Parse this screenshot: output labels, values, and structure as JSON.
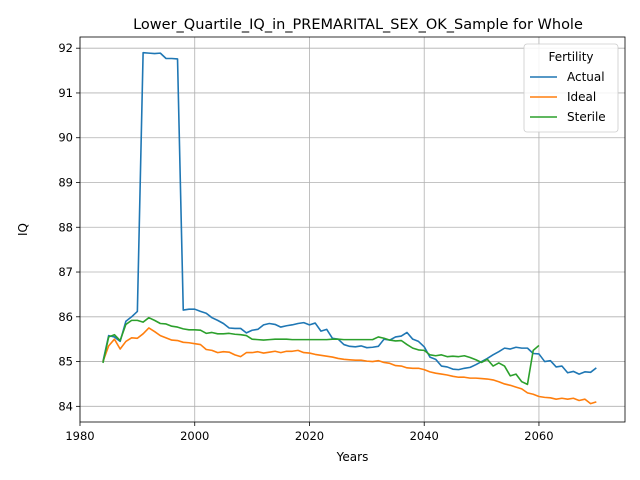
{
  "chart_data": {
    "type": "line",
    "title": "Lower_Quartile_IQ_in_PREMARITAL_SEX_OK_Sample for Whole",
    "xlabel": "Years",
    "ylabel": "IQ",
    "xlim": [
      1980,
      2075
    ],
    "ylim": [
      83.65,
      92.25
    ],
    "x_ticks": [
      1980,
      2000,
      2020,
      2040,
      2060
    ],
    "y_ticks": [
      84,
      85,
      86,
      87,
      88,
      89,
      90,
      91,
      92
    ],
    "grid": true,
    "legend": {
      "title": "Fertility",
      "placement": "top-right"
    },
    "series": [
      {
        "name": "Actual",
        "color": "#1f77b4",
        "points": [
          [
            1984,
            85.0
          ],
          [
            1985,
            85.58
          ],
          [
            1986,
            85.55
          ],
          [
            1987,
            85.45
          ],
          [
            1988,
            85.9
          ],
          [
            1989,
            86.0
          ],
          [
            1990,
            86.12
          ],
          [
            1991,
            91.9
          ],
          [
            1992,
            91.89
          ],
          [
            1993,
            91.88
          ],
          [
            1994,
            91.89
          ],
          [
            1995,
            91.77
          ],
          [
            1996,
            91.77
          ],
          [
            1997,
            91.76
          ],
          [
            1998,
            86.15
          ],
          [
            1999,
            86.17
          ],
          [
            2000,
            86.17
          ],
          [
            2001,
            86.12
          ],
          [
            2002,
            86.08
          ],
          [
            2003,
            85.98
          ],
          [
            2004,
            85.92
          ],
          [
            2005,
            85.85
          ],
          [
            2006,
            85.75
          ],
          [
            2007,
            85.74
          ],
          [
            2008,
            85.74
          ],
          [
            2009,
            85.64
          ],
          [
            2010,
            85.7
          ],
          [
            2011,
            85.72
          ],
          [
            2012,
            85.82
          ],
          [
            2013,
            85.85
          ],
          [
            2014,
            85.83
          ],
          [
            2015,
            85.77
          ],
          [
            2016,
            85.8
          ],
          [
            2017,
            85.82
          ],
          [
            2018,
            85.85
          ],
          [
            2019,
            85.87
          ],
          [
            2020,
            85.82
          ],
          [
            2021,
            85.86
          ],
          [
            2022,
            85.68
          ],
          [
            2023,
            85.72
          ],
          [
            2024,
            85.52
          ],
          [
            2025,
            85.5
          ],
          [
            2026,
            85.38
          ],
          [
            2027,
            85.34
          ],
          [
            2028,
            85.33
          ],
          [
            2029,
            85.35
          ],
          [
            2030,
            85.31
          ],
          [
            2031,
            85.32
          ],
          [
            2032,
            85.34
          ],
          [
            2033,
            85.5
          ],
          [
            2034,
            85.48
          ],
          [
            2035,
            85.55
          ],
          [
            2036,
            85.57
          ],
          [
            2037,
            85.65
          ],
          [
            2038,
            85.5
          ],
          [
            2039,
            85.45
          ],
          [
            2040,
            85.33
          ],
          [
            2041,
            85.1
          ],
          [
            2042,
            85.05
          ],
          [
            2043,
            84.9
          ],
          [
            2044,
            84.88
          ],
          [
            2045,
            84.83
          ],
          [
            2046,
            84.82
          ],
          [
            2047,
            84.85
          ],
          [
            2048,
            84.87
          ],
          [
            2049,
            84.93
          ],
          [
            2050,
            85.0
          ],
          [
            2051,
            85.07
          ],
          [
            2052,
            85.15
          ],
          [
            2053,
            85.22
          ],
          [
            2054,
            85.3
          ],
          [
            2055,
            85.28
          ],
          [
            2056,
            85.32
          ],
          [
            2057,
            85.3
          ],
          [
            2058,
            85.3
          ],
          [
            2059,
            85.18
          ],
          [
            2060,
            85.17
          ],
          [
            2061,
            85.0
          ],
          [
            2062,
            85.02
          ],
          [
            2063,
            84.88
          ],
          [
            2064,
            84.9
          ],
          [
            2065,
            84.75
          ],
          [
            2066,
            84.78
          ],
          [
            2067,
            84.72
          ],
          [
            2068,
            84.77
          ],
          [
            2069,
            84.76
          ],
          [
            2070,
            84.86
          ]
        ]
      },
      {
        "name": "Ideal",
        "color": "#ff7f0e",
        "points": [
          [
            1984,
            85.0
          ],
          [
            1985,
            85.35
          ],
          [
            1986,
            85.5
          ],
          [
            1987,
            85.28
          ],
          [
            1988,
            85.45
          ],
          [
            1989,
            85.53
          ],
          [
            1990,
            85.52
          ],
          [
            1991,
            85.62
          ],
          [
            1992,
            85.75
          ],
          [
            1993,
            85.67
          ],
          [
            1994,
            85.58
          ],
          [
            1995,
            85.53
          ],
          [
            1996,
            85.48
          ],
          [
            1997,
            85.47
          ],
          [
            1998,
            85.43
          ],
          [
            1999,
            85.42
          ],
          [
            2000,
            85.4
          ],
          [
            2001,
            85.38
          ],
          [
            2002,
            85.27
          ],
          [
            2003,
            85.25
          ],
          [
            2004,
            85.2
          ],
          [
            2005,
            85.22
          ],
          [
            2006,
            85.21
          ],
          [
            2007,
            85.15
          ],
          [
            2008,
            85.11
          ],
          [
            2009,
            85.2
          ],
          [
            2010,
            85.2
          ],
          [
            2011,
            85.22
          ],
          [
            2012,
            85.19
          ],
          [
            2013,
            85.21
          ],
          [
            2014,
            85.23
          ],
          [
            2015,
            85.2
          ],
          [
            2016,
            85.23
          ],
          [
            2017,
            85.23
          ],
          [
            2018,
            85.25
          ],
          [
            2019,
            85.2
          ],
          [
            2020,
            85.19
          ],
          [
            2021,
            85.16
          ],
          [
            2022,
            85.14
          ],
          [
            2023,
            85.12
          ],
          [
            2024,
            85.1
          ],
          [
            2025,
            85.07
          ],
          [
            2026,
            85.05
          ],
          [
            2027,
            85.04
          ],
          [
            2028,
            85.03
          ],
          [
            2029,
            85.03
          ],
          [
            2030,
            85.01
          ],
          [
            2031,
            85.0
          ],
          [
            2032,
            85.02
          ],
          [
            2033,
            84.98
          ],
          [
            2034,
            84.96
          ],
          [
            2035,
            84.91
          ],
          [
            2036,
            84.9
          ],
          [
            2037,
            84.86
          ],
          [
            2038,
            84.85
          ],
          [
            2039,
            84.85
          ],
          [
            2040,
            84.82
          ],
          [
            2041,
            84.77
          ],
          [
            2042,
            84.74
          ],
          [
            2043,
            84.72
          ],
          [
            2044,
            84.7
          ],
          [
            2045,
            84.67
          ],
          [
            2046,
            84.65
          ],
          [
            2047,
            84.65
          ],
          [
            2048,
            84.63
          ],
          [
            2049,
            84.63
          ],
          [
            2050,
            84.62
          ],
          [
            2051,
            84.61
          ],
          [
            2052,
            84.59
          ],
          [
            2053,
            84.55
          ],
          [
            2054,
            84.5
          ],
          [
            2055,
            84.47
          ],
          [
            2056,
            84.43
          ],
          [
            2057,
            84.39
          ],
          [
            2058,
            84.3
          ],
          [
            2059,
            84.27
          ],
          [
            2060,
            84.22
          ],
          [
            2061,
            84.2
          ],
          [
            2062,
            84.19
          ],
          [
            2063,
            84.16
          ],
          [
            2064,
            84.18
          ],
          [
            2065,
            84.16
          ],
          [
            2066,
            84.18
          ],
          [
            2067,
            84.13
          ],
          [
            2068,
            84.16
          ],
          [
            2069,
            84.06
          ],
          [
            2070,
            84.1
          ]
        ]
      },
      {
        "name": "Sterile",
        "color": "#2ca02c",
        "points": [
          [
            1984,
            84.97
          ],
          [
            1985,
            85.55
          ],
          [
            1986,
            85.6
          ],
          [
            1987,
            85.47
          ],
          [
            1988,
            85.83
          ],
          [
            1989,
            85.92
          ],
          [
            1990,
            85.92
          ],
          [
            1991,
            85.88
          ],
          [
            1992,
            85.98
          ],
          [
            1993,
            85.92
          ],
          [
            1994,
            85.85
          ],
          [
            1995,
            85.84
          ],
          [
            1996,
            85.79
          ],
          [
            1997,
            85.77
          ],
          [
            1998,
            85.73
          ],
          [
            1999,
            85.71
          ],
          [
            2000,
            85.71
          ],
          [
            2001,
            85.7
          ],
          [
            2002,
            85.63
          ],
          [
            2003,
            85.65
          ],
          [
            2004,
            85.62
          ],
          [
            2005,
            85.62
          ],
          [
            2006,
            85.63
          ],
          [
            2007,
            85.61
          ],
          [
            2008,
            85.6
          ],
          [
            2009,
            85.58
          ],
          [
            2010,
            85.5
          ],
          [
            2011,
            85.49
          ],
          [
            2012,
            85.48
          ],
          [
            2013,
            85.49
          ],
          [
            2014,
            85.5
          ],
          [
            2015,
            85.5
          ],
          [
            2016,
            85.5
          ],
          [
            2017,
            85.49
          ],
          [
            2018,
            85.49
          ],
          [
            2019,
            85.49
          ],
          [
            2020,
            85.49
          ],
          [
            2021,
            85.49
          ],
          [
            2022,
            85.49
          ],
          [
            2023,
            85.49
          ],
          [
            2024,
            85.5
          ],
          [
            2025,
            85.5
          ],
          [
            2026,
            85.49
          ],
          [
            2027,
            85.49
          ],
          [
            2028,
            85.49
          ],
          [
            2029,
            85.49
          ],
          [
            2030,
            85.49
          ],
          [
            2031,
            85.49
          ],
          [
            2032,
            85.55
          ],
          [
            2033,
            85.52
          ],
          [
            2034,
            85.48
          ],
          [
            2035,
            85.46
          ],
          [
            2036,
            85.47
          ],
          [
            2037,
            85.38
          ],
          [
            2038,
            85.3
          ],
          [
            2039,
            85.26
          ],
          [
            2040,
            85.25
          ],
          [
            2041,
            85.15
          ],
          [
            2042,
            85.13
          ],
          [
            2043,
            85.15
          ],
          [
            2044,
            85.11
          ],
          [
            2045,
            85.12
          ],
          [
            2046,
            85.11
          ],
          [
            2047,
            85.13
          ],
          [
            2048,
            85.09
          ],
          [
            2049,
            85.04
          ],
          [
            2050,
            84.98
          ],
          [
            2051,
            85.05
          ],
          [
            2052,
            84.9
          ],
          [
            2053,
            84.97
          ],
          [
            2054,
            84.9
          ],
          [
            2055,
            84.68
          ],
          [
            2056,
            84.72
          ],
          [
            2057,
            84.55
          ],
          [
            2058,
            84.49
          ],
          [
            2059,
            85.25
          ],
          [
            2060,
            85.36
          ]
        ]
      }
    ]
  }
}
